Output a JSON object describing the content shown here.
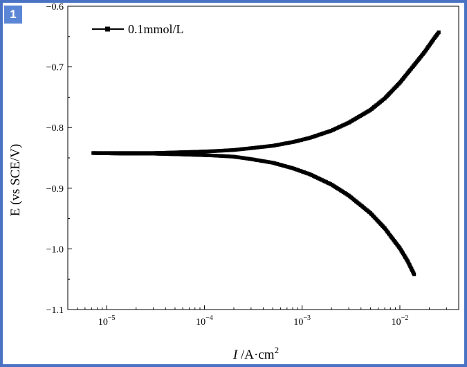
{
  "panel_label": "1",
  "chart_data": {
    "type": "scatter",
    "title": "",
    "xlabel_italic": "I",
    "xlabel_rest": " /A·cm",
    "xlabel_sup": "2",
    "ylabel": "E (vs SCE/V)",
    "x_scale": "log",
    "xlim": [
      4e-06,
      0.04
    ],
    "ylim": [
      -1.1,
      -0.6
    ],
    "x_ticks": [
      {
        "base": "10",
        "exp": "−5",
        "value": 1e-05
      },
      {
        "base": "10",
        "exp": "−4",
        "value": 0.0001
      },
      {
        "base": "10",
        "exp": "−3",
        "value": 0.001
      },
      {
        "base": "10",
        "exp": "−2",
        "value": 0.01
      }
    ],
    "y_ticks": [
      {
        "label": "−0.6",
        "value": -0.6
      },
      {
        "label": "−0.7",
        "value": -0.7
      },
      {
        "label": "−0.8",
        "value": -0.8
      },
      {
        "label": "−0.9",
        "value": -0.9
      },
      {
        "label": "−1.0",
        "value": -1.0
      },
      {
        "label": "−1.1",
        "value": -1.1
      }
    ],
    "legend_position": "top-left",
    "grid": false,
    "series": [
      {
        "name": "0.1mmol/L",
        "color": "#000000",
        "marker": "square",
        "branches": [
          {
            "x": [
              7.3e-06,
              1.5e-05,
              3e-05,
              5e-05,
              8e-05,
              0.00012,
              0.0002,
              0.0003,
              0.0005,
              0.0008,
              0.0012,
              0.002,
              0.003,
              0.005,
              0.007,
              0.01,
              0.014,
              0.018,
              0.022,
              0.025
            ],
            "y": [
              -0.842,
              -0.842,
              -0.842,
              -0.841,
              -0.84,
              -0.839,
              -0.837,
              -0.834,
              -0.83,
              -0.824,
              -0.817,
              -0.805,
              -0.792,
              -0.771,
              -0.752,
              -0.726,
              -0.697,
              -0.675,
              -0.655,
              -0.643
            ]
          },
          {
            "x": [
              7.3e-06,
              1.5e-05,
              3e-05,
              5e-05,
              8e-05,
              0.00012,
              0.0002,
              0.0003,
              0.0005,
              0.0008,
              0.0012,
              0.002,
              0.003,
              0.005,
              0.007,
              0.01,
              0.012,
              0.014
            ],
            "y": [
              -0.842,
              -0.843,
              -0.843,
              -0.844,
              -0.845,
              -0.846,
              -0.848,
              -0.852,
              -0.858,
              -0.867,
              -0.877,
              -0.894,
              -0.912,
              -0.941,
              -0.966,
              -0.999,
              -1.02,
              -1.042
            ]
          }
        ]
      }
    ]
  }
}
